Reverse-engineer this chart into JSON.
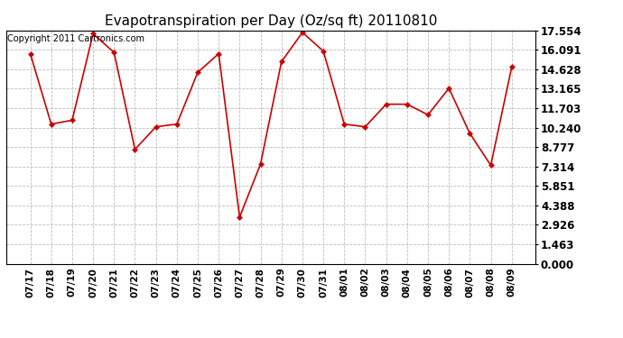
{
  "title": "Evapotranspiration per Day (Oz/sq ft) 20110810",
  "copyright": "Copyright 2011 Cartronics.com",
  "dates": [
    "07/17",
    "07/18",
    "07/19",
    "07/20",
    "07/21",
    "07/22",
    "07/23",
    "07/24",
    "07/25",
    "07/26",
    "07/27",
    "07/28",
    "07/29",
    "07/30",
    "07/31",
    "08/01",
    "08/02",
    "08/03",
    "08/04",
    "08/05",
    "08/06",
    "08/07",
    "08/08",
    "08/09"
  ],
  "values": [
    15.8,
    10.5,
    10.8,
    17.3,
    15.9,
    8.6,
    10.3,
    10.5,
    14.4,
    15.8,
    3.5,
    7.5,
    15.2,
    17.4,
    16.0,
    10.5,
    10.3,
    12.0,
    12.0,
    11.2,
    13.2,
    9.8,
    7.4,
    14.8
  ],
  "line_color": "#cc0000",
  "marker": "D",
  "marker_size": 3,
  "background_color": "#ffffff",
  "grid_color": "#bbbbbb",
  "ylim": [
    0,
    17.554
  ],
  "yticks": [
    0.0,
    1.463,
    2.926,
    4.388,
    5.851,
    7.314,
    8.777,
    10.24,
    11.703,
    13.165,
    14.628,
    16.091,
    17.554
  ],
  "title_fontsize": 11,
  "copyright_fontsize": 7,
  "tick_fontsize": 7.5,
  "ytick_fontsize": 8.5
}
